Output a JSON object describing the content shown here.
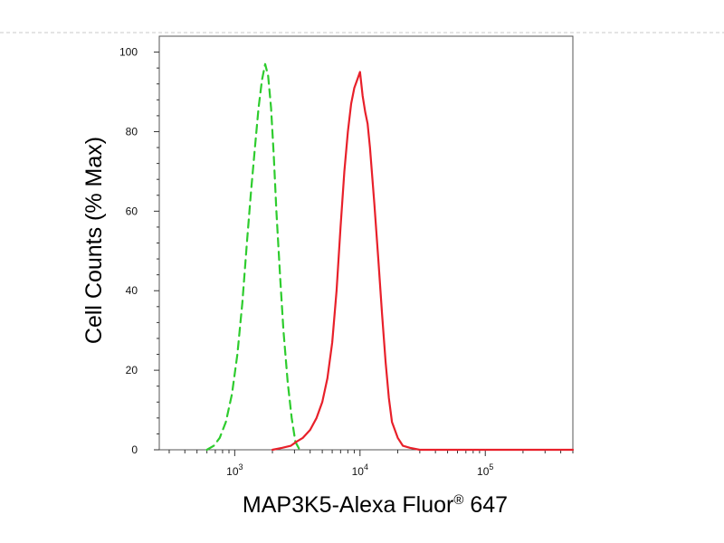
{
  "chart_data": {
    "type": "line",
    "xlabel": "MAP3K5-Alexa Fluor",
    "xlabel_superscript": "®",
    "xlabel_suffix": " 647",
    "ylabel": "Cell Counts (% Max)",
    "x_scale": "log",
    "xlim": [
      250,
      500000
    ],
    "ylim": [
      0,
      104
    ],
    "y_ticks": [
      0,
      20,
      40,
      60,
      80,
      100
    ],
    "y_tick_labels": [
      "0",
      "20",
      "40",
      "60",
      "80",
      "100"
    ],
    "x_ticks": [
      1000,
      10000,
      100000
    ],
    "x_tick_labels": [
      {
        "base": "10",
        "exp": "3"
      },
      {
        "base": "10",
        "exp": "4"
      },
      {
        "base": "10",
        "exp": "5"
      }
    ],
    "grid": false,
    "series": [
      {
        "color": "#2ecc2e",
        "dash": "dashed",
        "x": [
          600,
          680,
          760,
          850,
          950,
          1050,
          1150,
          1250,
          1350,
          1450,
          1550,
          1650,
          1750,
          1850,
          1950,
          2050,
          2150,
          2300,
          2450,
          2650,
          2850,
          3050,
          3300
        ],
        "y": [
          0,
          1,
          3,
          7,
          14,
          24,
          37,
          52,
          65,
          76,
          86,
          93,
          97,
          94,
          86,
          74,
          60,
          44,
          30,
          17,
          8,
          2,
          0
        ]
      },
      {
        "color": "#e8202a",
        "dash": "solid",
        "x": [
          2000,
          2400,
          2800,
          3100,
          3500,
          4000,
          4500,
          5000,
          5500,
          6000,
          6500,
          7000,
          7500,
          8000,
          8500,
          9000,
          9500,
          10000,
          10500,
          11000,
          11500,
          12000,
          13000,
          14000,
          15000,
          16000,
          17000,
          18000,
          20000,
          22000,
          25000,
          30000,
          40000,
          60000,
          100000,
          200000,
          500000
        ],
        "y": [
          0,
          0.5,
          1,
          2,
          3,
          5,
          8,
          12,
          18,
          27,
          40,
          56,
          70,
          80,
          87,
          91,
          93,
          95,
          89,
          85,
          82,
          76,
          62,
          48,
          34,
          22,
          13,
          7,
          3,
          1,
          0.5,
          0,
          0,
          0,
          0,
          0,
          0
        ]
      }
    ]
  }
}
